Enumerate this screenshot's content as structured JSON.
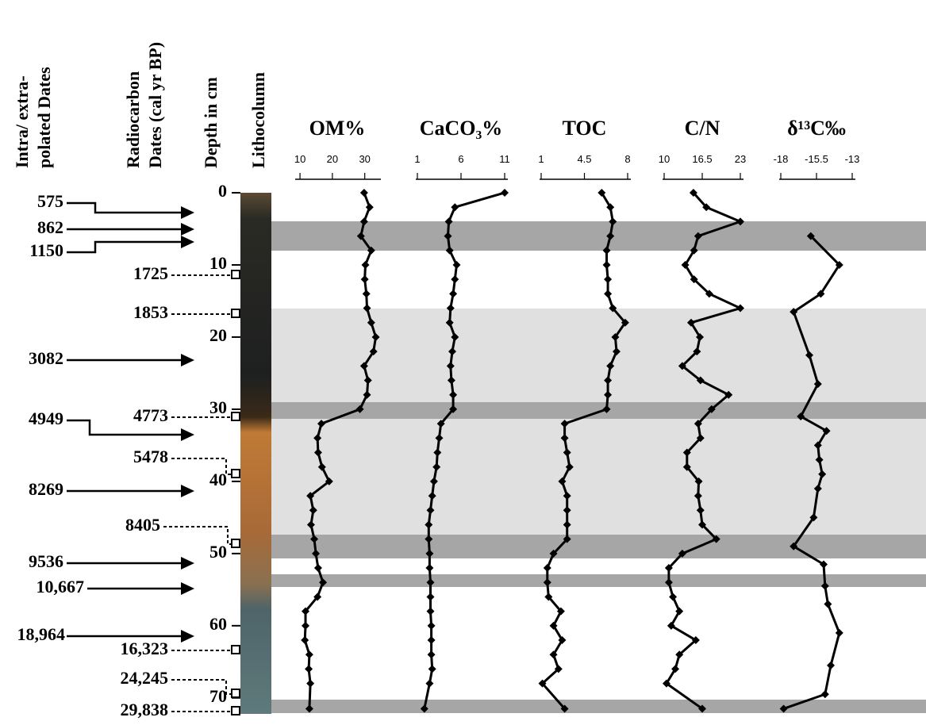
{
  "left_headers": {
    "interpolated": [
      "Intra/ extra-",
      "polated Dates"
    ],
    "radiocarbon": [
      "Radiocarbon",
      "Dates (cal yr BP)"
    ],
    "lithocolumn": "Lithocolumn"
  },
  "interpolated_dates": [
    "575",
    "862",
    "1150",
    "3082",
    "4949",
    "8269",
    "9536",
    "10,667",
    "18,964"
  ],
  "radiocarbon_dates": [
    "1725",
    "1853",
    "4773",
    "5478",
    "8405",
    "16,323",
    "24,245",
    "29,838"
  ],
  "chart_data": {
    "type": "line",
    "y_label": "Depth in cm",
    "ylim": [
      0,
      72
    ],
    "yticks": [
      0,
      10,
      20,
      30,
      40,
      50,
      60,
      70
    ],
    "depth": [
      0,
      2,
      4,
      6,
      8,
      10,
      12,
      14,
      16,
      18,
      20,
      22,
      24,
      26,
      28,
      30,
      32,
      34,
      36,
      38,
      40,
      42,
      44,
      46,
      48,
      50,
      52,
      54,
      56,
      58,
      60,
      62,
      64,
      66,
      68,
      71.5
    ],
    "panels": [
      {
        "title": "OM%",
        "xlim": [
          9,
          34
        ],
        "xticks": [
          10,
          20,
          30
        ],
        "values": [
          29.8,
          31.5,
          29.8,
          28.8,
          32,
          30.2,
          30,
          30.5,
          30.7,
          32,
          33.4,
          32.7,
          29.8,
          31,
          30.7,
          28.5,
          16.6,
          15.4,
          15.6,
          16.8,
          19,
          13.2,
          14.1,
          13.4,
          14.4,
          14.9,
          15.6,
          17.1,
          15.4,
          11.7,
          11.7,
          11.5,
          12.9,
          12.7,
          13.2,
          12.9
        ]
      },
      {
        "title": "CaCO₃%",
        "xlim": [
          1,
          11
        ],
        "xticks": [
          1,
          6,
          11
        ],
        "values": [
          11,
          5.3,
          4.6,
          4.5,
          4.7,
          5.5,
          5.3,
          5.1,
          4.8,
          4.7,
          5.3,
          5,
          4.8,
          4.9,
          5.1,
          5.1,
          3.7,
          3.5,
          3.3,
          3.2,
          2.9,
          2.7,
          2.5,
          2.3,
          2.3,
          2.4,
          2.4,
          2.5,
          2.5,
          2.5,
          2.6,
          2.6,
          2.6,
          2.7,
          2.4,
          1.8
        ]
      },
      {
        "title": "TOC",
        "xlim": [
          1,
          8
        ],
        "xticks": [
          1,
          4.5,
          8
        ],
        "values": [
          5.9,
          6.6,
          6.8,
          6.6,
          6.3,
          6.3,
          6.4,
          6.4,
          6.8,
          7.8,
          7,
          7.1,
          6.6,
          6.4,
          6.4,
          6.3,
          2.9,
          2.9,
          3.1,
          3.3,
          2.7,
          3.1,
          3.1,
          3.1,
          3.1,
          2,
          1.5,
          1.5,
          1.6,
          2.6,
          2,
          2.7,
          2,
          2.4,
          1.1,
          2.9
        ]
      },
      {
        "title": "C/N",
        "xlim": [
          10,
          23
        ],
        "xticks": [
          10,
          16.5,
          23
        ],
        "values": [
          15,
          17.2,
          23,
          15.8,
          15.1,
          13.6,
          15.1,
          17.7,
          23,
          14.6,
          16.1,
          15.6,
          13.1,
          16.2,
          21,
          18.1,
          15.8,
          16.2,
          13.9,
          13.9,
          15.9,
          15.8,
          16.2,
          16.5,
          18.9,
          13.1,
          10.8,
          10.8,
          11.5,
          12.6,
          11.2,
          15.4,
          12.6,
          11.9,
          10.4,
          16.5
        ]
      },
      {
        "title": "δ¹³C‰",
        "xlim": [
          -18,
          -13
        ],
        "xticks": [
          -18,
          -15.5,
          -13
        ],
        "depth": [
          6,
          10,
          14,
          16.5,
          22.5,
          26.5,
          31,
          33,
          35,
          37,
          39,
          41,
          45,
          49,
          51.5,
          54.5,
          57,
          61,
          65.5,
          69.5,
          71.5
        ],
        "values": [
          -15.9,
          -13.9,
          -15.2,
          -17.1,
          -16,
          -15.4,
          -16.6,
          -14.8,
          -15.4,
          -15.3,
          -15.1,
          -15.4,
          -15.7,
          -17.1,
          -15,
          -14.9,
          -14.7,
          -13.9,
          -14.5,
          -14.9,
          -17.8
        ]
      }
    ]
  }
}
